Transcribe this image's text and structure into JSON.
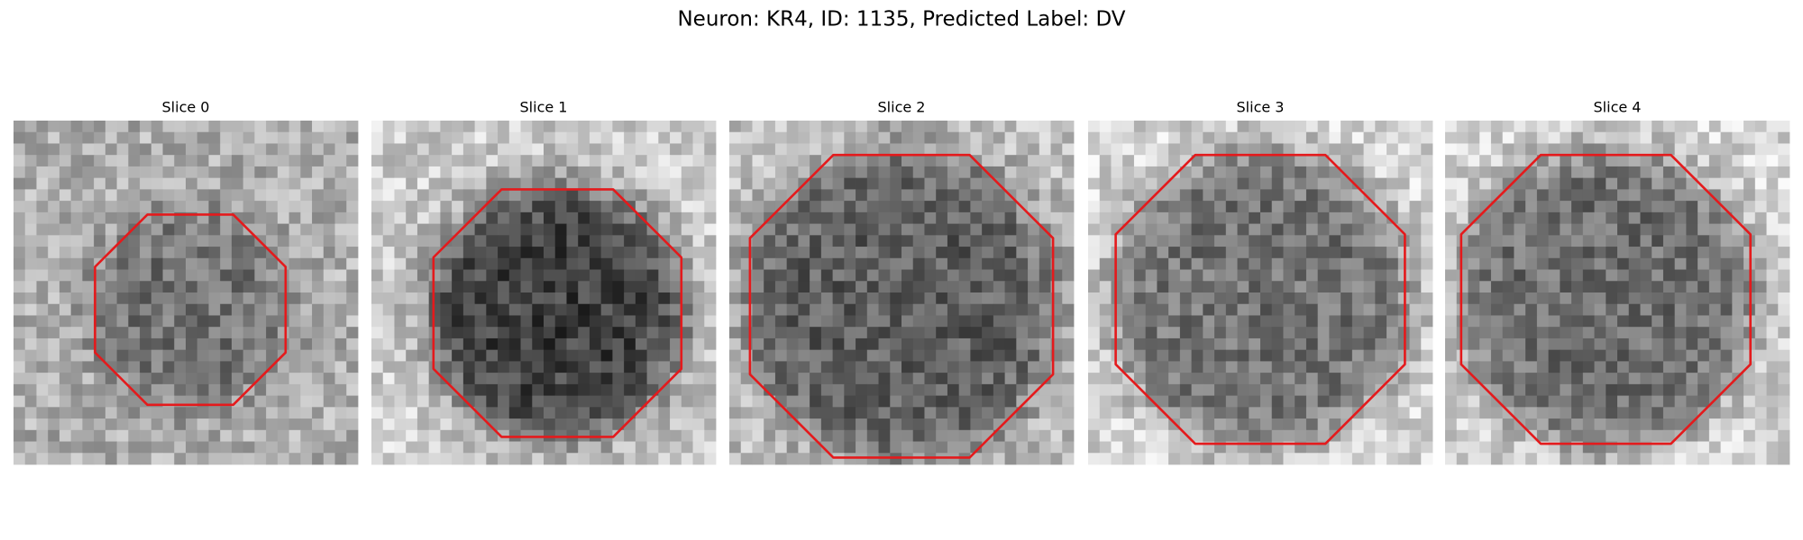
{
  "title": "Neuron: KR4, ID: 1135, Predicted Label: DV",
  "panels": [
    {
      "title": "Slice 0"
    },
    {
      "title": "Slice 1"
    },
    {
      "title": "Slice 2"
    },
    {
      "title": "Slice 3"
    },
    {
      "title": "Slice 4"
    }
  ]
}
